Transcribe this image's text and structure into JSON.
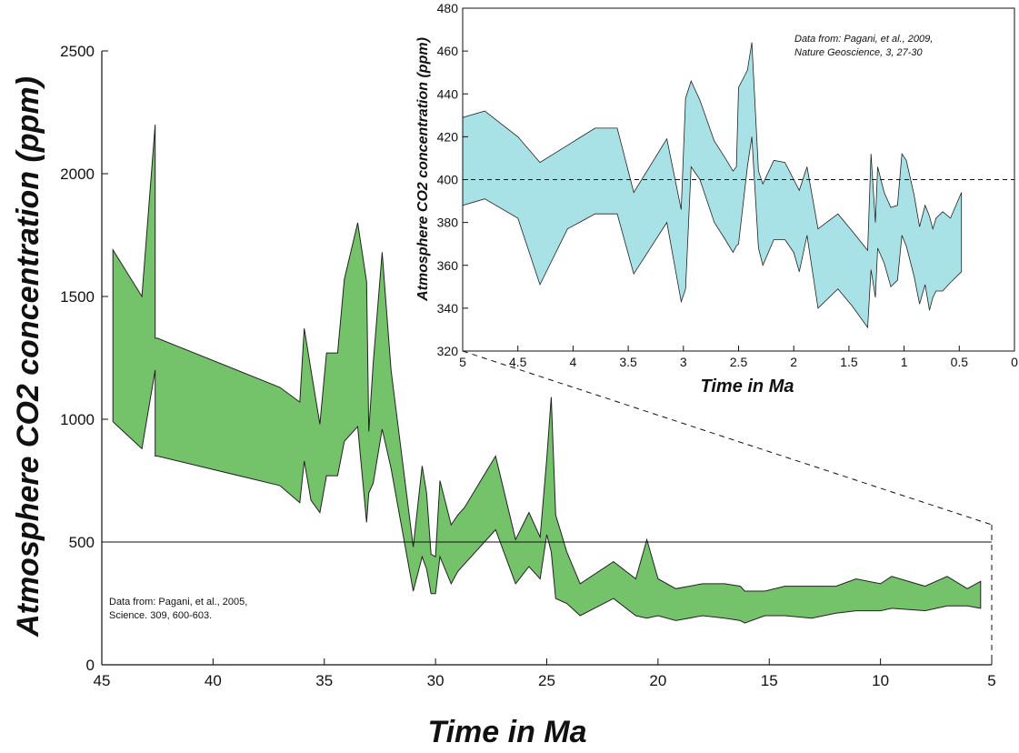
{
  "chart_data": [
    {
      "type": "area",
      "xlabel": "Time in Ma",
      "ylabel": "Atmosphere CO2 concentration (ppm)",
      "xlim": [
        45,
        5
      ],
      "ylim": [
        0,
        2500
      ],
      "x_ticks": [
        "45",
        "40",
        "35",
        "30",
        "25",
        "20",
        "15",
        "10",
        "5"
      ],
      "y_ticks": [
        "0",
        "500",
        "1000",
        "1500",
        "2000",
        "2500"
      ],
      "reference_line": 500,
      "note": [
        "Data from:  Pagani, et al., 2005,",
        "Science. 309, 600-603."
      ],
      "colors": {
        "fill": "#74c26a",
        "stroke": "#222222"
      },
      "series": [
        {
          "x": [
            44.5,
            43.2,
            42.6,
            42.6,
            42.5,
            37.0,
            36.1,
            35.9,
            35.6,
            35.2,
            34.9,
            34.4,
            34.1,
            33.5,
            33.1,
            33.0,
            32.8,
            32.4,
            32.0,
            31.0,
            30.6,
            30.4,
            30.2,
            30.0,
            29.8,
            29.3,
            29.0,
            28.7,
            27.3,
            26.4,
            25.8,
            25.3,
            25.0,
            24.8,
            24.6,
            24.1,
            23.5,
            22.0,
            21.0,
            20.5,
            20.0,
            19.2,
            18.0,
            17.0,
            16.3,
            16.1,
            15.2,
            14.3,
            13.1,
            12.0,
            11.1,
            10.0,
            9.5,
            8.0,
            7.0,
            6.1,
            5.5
          ],
          "upper": [
            1690,
            1500,
            2200,
            1330,
            1330,
            1130,
            1070,
            1370,
            1200,
            980,
            1270,
            1270,
            1570,
            1800,
            1560,
            950,
            1230,
            1680,
            1200,
            480,
            810,
            700,
            450,
            440,
            750,
            570,
            610,
            640,
            850,
            510,
            620,
            520,
            840,
            1090,
            610,
            460,
            330,
            420,
            350,
            510,
            350,
            310,
            330,
            330,
            320,
            300,
            300,
            320,
            320,
            320,
            350,
            330,
            360,
            320,
            360,
            310,
            340
          ],
          "lower": [
            990,
            880,
            1200,
            850,
            850,
            730,
            660,
            830,
            670,
            620,
            770,
            770,
            910,
            970,
            580,
            700,
            740,
            960,
            800,
            300,
            440,
            390,
            290,
            290,
            440,
            330,
            380,
            410,
            550,
            330,
            400,
            350,
            530,
            460,
            270,
            250,
            200,
            270,
            200,
            190,
            200,
            180,
            200,
            190,
            180,
            170,
            200,
            200,
            190,
            210,
            220,
            220,
            230,
            220,
            240,
            240,
            230
          ]
        }
      ]
    },
    {
      "type": "area",
      "xlabel": "Time in Ma",
      "ylabel": "Atmosphere CO2 concentration (ppm)",
      "xlim": [
        5,
        0
      ],
      "ylim": [
        320,
        480
      ],
      "x_ticks": [
        "5",
        "4.5",
        "4",
        "3.5",
        "3",
        "2.5",
        "2",
        "1.5",
        "1",
        "0.5",
        "0"
      ],
      "y_ticks": [
        "320",
        "340",
        "360",
        "380",
        "400",
        "420",
        "440",
        "460",
        "480"
      ],
      "reference_line": 400,
      "note": [
        "Data from:  Pagani, et al., 2009,",
        "Nature Geoscience, 3, 27-30"
      ],
      "colors": {
        "fill": "#a9e2e6",
        "stroke": "#222222"
      },
      "series": [
        {
          "x": [
            5.0,
            4.8,
            4.5,
            4.3,
            4.05,
            3.8,
            3.6,
            3.45,
            3.15,
            3.02,
            2.98,
            2.93,
            2.85,
            2.72,
            2.62,
            2.55,
            2.52,
            2.5,
            2.42,
            2.38,
            2.32,
            2.28,
            2.18,
            2.08,
            2.0,
            1.95,
            1.88,
            1.78,
            1.6,
            1.47,
            1.33,
            1.3,
            1.26,
            1.24,
            1.18,
            1.12,
            1.06,
            1.02,
            0.98,
            0.91,
            0.86,
            0.81,
            0.77,
            0.74,
            0.71,
            0.65,
            0.58,
            0.48
          ],
          "upper": [
            429,
            432,
            420,
            408,
            416,
            424,
            424,
            394,
            419,
            386,
            438,
            446,
            437,
            418,
            410,
            404,
            406,
            443,
            451,
            464,
            404,
            398,
            409,
            408,
            400,
            395,
            406,
            377,
            384,
            376,
            367,
            412,
            380,
            406,
            394,
            387,
            388,
            412,
            409,
            393,
            378,
            388,
            383,
            377,
            382,
            385,
            382,
            394
          ],
          "lower": [
            388,
            391,
            382,
            351,
            377,
            384,
            384,
            356,
            380,
            343,
            349,
            406,
            400,
            380,
            372,
            366,
            369,
            370,
            406,
            420,
            368,
            360,
            372,
            372,
            366,
            357,
            374,
            340,
            349,
            341,
            331,
            358,
            345,
            368,
            361,
            350,
            353,
            374,
            369,
            355,
            342,
            351,
            339,
            345,
            348,
            348,
            352,
            357
          ]
        }
      ]
    }
  ]
}
